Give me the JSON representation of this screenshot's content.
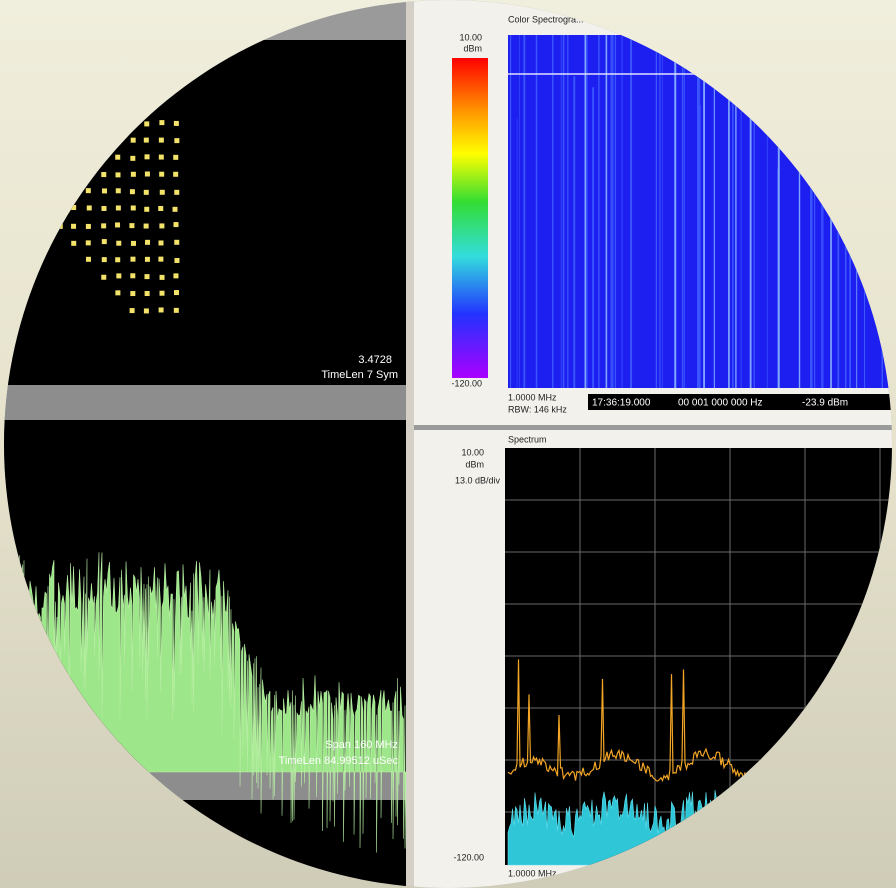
{
  "constellation": {
    "value": "3.4728",
    "timelen": "TimeLen 7  Sym"
  },
  "time_spectrum": {
    "span": "Span 160 MHz",
    "timelen": "TimeLen 84.99512 uSec"
  },
  "spectrogram": {
    "title": "Color Spectrogra...",
    "top_label": "10.00",
    "unit": "dBm",
    "bottom_label": "-120.00",
    "start_freq": "1.0000 MHz",
    "rbw": "RBW: 146 kHz",
    "status": {
      "time": "17:36:19.000",
      "freq": "00 001 000 000 Hz",
      "level": "-23.9 dBm"
    }
  },
  "spectrum": {
    "title": "Spectrum",
    "top_label": "10.00",
    "unit": "dBm",
    "scale": "13.0 dB/div",
    "bottom_label": "-120.00",
    "start_freq": "1.0000 MHz"
  }
}
